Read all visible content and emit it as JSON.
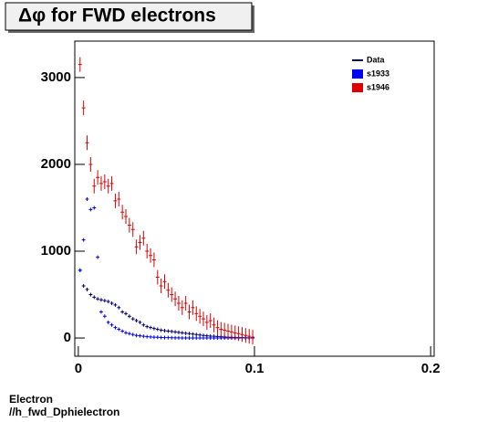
{
  "chart_data": {
    "type": "histogram",
    "title": "Δφ for FWD electrons",
    "footer": [
      "Electron",
      "//h_fwd_Dphielectron"
    ],
    "x": [
      0.001,
      0.003,
      0.005,
      0.007,
      0.009,
      0.011,
      0.013,
      0.015,
      0.017,
      0.019,
      0.021,
      0.023,
      0.025,
      0.027,
      0.029,
      0.031,
      0.033,
      0.035,
      0.037,
      0.039,
      0.041,
      0.043,
      0.045,
      0.047,
      0.049,
      0.051,
      0.053,
      0.055,
      0.057,
      0.059,
      0.061,
      0.063,
      0.065,
      0.067,
      0.069,
      0.071,
      0.073,
      0.075,
      0.077,
      0.079,
      0.081,
      0.083,
      0.085,
      0.087,
      0.089,
      0.091,
      0.093,
      0.095,
      0.097,
      0.099
    ],
    "series": [
      {
        "name": "Data",
        "color": "#000066",
        "values": [
          780,
          600,
          560,
          500,
          470,
          450,
          440,
          430,
          420,
          400,
          380,
          350,
          300,
          280,
          250,
          220,
          200,
          180,
          150,
          130,
          120,
          110,
          100,
          90,
          85,
          80,
          75,
          70,
          65,
          60,
          55,
          50,
          45,
          40,
          35,
          30,
          25,
          22,
          20,
          18,
          15,
          12,
          10,
          8,
          6,
          5,
          4,
          3,
          2,
          1
        ]
      },
      {
        "name": "s1933",
        "color": "#0000ee",
        "values": [
          780,
          1130,
          1600,
          1480,
          1500,
          930,
          300,
          250,
          180,
          150,
          120,
          100,
          80,
          60,
          50,
          40,
          30,
          25,
          20,
          15,
          12,
          10,
          8,
          6,
          5,
          4,
          3,
          2,
          2,
          1,
          1,
          1,
          0,
          0,
          0,
          0,
          0,
          0,
          0,
          0,
          0,
          0,
          0,
          0,
          0,
          0,
          0,
          0,
          0,
          0
        ]
      },
      {
        "name": "s1946",
        "color": "#dd0000",
        "values": [
          3150,
          2650,
          2250,
          2000,
          1750,
          1850,
          1780,
          1800,
          1750,
          1780,
          1580,
          1600,
          1450,
          1400,
          1300,
          1250,
          1050,
          1100,
          1150,
          1000,
          950,
          900,
          700,
          600,
          650,
          550,
          500,
          450,
          400,
          350,
          400,
          300,
          350,
          280,
          250,
          220,
          180,
          200,
          150,
          120,
          100,
          90,
          80,
          70,
          60,
          50,
          40,
          30,
          20,
          10
        ]
      }
    ],
    "xlim": [
      -0.002,
      0.202
    ],
    "ylim": [
      -210,
      3420
    ],
    "xticks": [
      0,
      0.1,
      0.2
    ],
    "yticks": [
      0,
      1000,
      2000,
      3000
    ]
  }
}
